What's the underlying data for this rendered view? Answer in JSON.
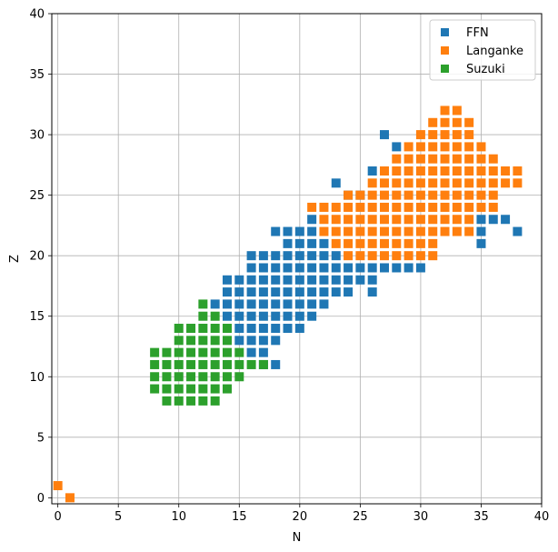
{
  "chart_data": {
    "type": "scatter",
    "xlabel": "N",
    "ylabel": "Z",
    "xlim": [
      -0.5,
      40
    ],
    "ylim": [
      -0.5,
      40
    ],
    "xticks": [
      0,
      5,
      10,
      15,
      20,
      25,
      30,
      35,
      40
    ],
    "yticks": [
      0,
      5,
      10,
      15,
      20,
      25,
      30,
      35,
      40
    ],
    "grid": true,
    "marker": "square",
    "legend_position": "top-right",
    "series": [
      {
        "name": "FFN",
        "color": "#1f77b4",
        "points": [
          [
            23,
            26
          ],
          [
            27,
            30
          ],
          [
            28,
            29
          ],
          [
            26,
            27
          ],
          [
            24,
            25
          ],
          [
            25,
            25
          ],
          [
            21,
            23
          ],
          [
            18,
            22
          ],
          [
            19,
            22
          ],
          [
            20,
            22
          ],
          [
            21,
            22
          ],
          [
            19,
            21
          ],
          [
            20,
            21
          ],
          [
            21,
            21
          ],
          [
            22,
            21
          ],
          [
            16,
            20
          ],
          [
            17,
            20
          ],
          [
            18,
            20
          ],
          [
            19,
            20
          ],
          [
            20,
            20
          ],
          [
            21,
            20
          ],
          [
            22,
            20
          ],
          [
            23,
            20
          ],
          [
            16,
            19
          ],
          [
            17,
            19
          ],
          [
            18,
            19
          ],
          [
            19,
            19
          ],
          [
            20,
            19
          ],
          [
            21,
            19
          ],
          [
            22,
            19
          ],
          [
            23,
            19
          ],
          [
            24,
            19
          ],
          [
            25,
            19
          ],
          [
            26,
            19
          ],
          [
            27,
            19
          ],
          [
            28,
            19
          ],
          [
            29,
            19
          ],
          [
            30,
            19
          ],
          [
            14,
            18
          ],
          [
            15,
            18
          ],
          [
            16,
            18
          ],
          [
            17,
            18
          ],
          [
            18,
            18
          ],
          [
            19,
            18
          ],
          [
            20,
            18
          ],
          [
            21,
            18
          ],
          [
            22,
            18
          ],
          [
            23,
            18
          ],
          [
            24,
            18
          ],
          [
            25,
            18
          ],
          [
            26,
            18
          ],
          [
            14,
            17
          ],
          [
            15,
            17
          ],
          [
            16,
            17
          ],
          [
            17,
            17
          ],
          [
            18,
            17
          ],
          [
            19,
            17
          ],
          [
            20,
            17
          ],
          [
            21,
            17
          ],
          [
            22,
            17
          ],
          [
            23,
            17
          ],
          [
            24,
            17
          ],
          [
            26,
            17
          ],
          [
            13,
            16
          ],
          [
            14,
            16
          ],
          [
            15,
            16
          ],
          [
            16,
            16
          ],
          [
            17,
            16
          ],
          [
            18,
            16
          ],
          [
            19,
            16
          ],
          [
            20,
            16
          ],
          [
            21,
            16
          ],
          [
            22,
            16
          ],
          [
            14,
            15
          ],
          [
            15,
            15
          ],
          [
            16,
            15
          ],
          [
            17,
            15
          ],
          [
            18,
            15
          ],
          [
            19,
            15
          ],
          [
            20,
            15
          ],
          [
            21,
            15
          ],
          [
            15,
            14
          ],
          [
            16,
            14
          ],
          [
            17,
            14
          ],
          [
            18,
            14
          ],
          [
            19,
            14
          ],
          [
            20,
            14
          ],
          [
            15,
            13
          ],
          [
            16,
            13
          ],
          [
            17,
            13
          ],
          [
            18,
            13
          ],
          [
            16,
            12
          ],
          [
            17,
            12
          ],
          [
            17,
            11
          ],
          [
            18,
            11
          ],
          [
            35,
            23
          ],
          [
            35,
            22
          ],
          [
            35,
            21
          ],
          [
            36,
            23
          ],
          [
            37,
            23
          ],
          [
            38,
            22
          ]
        ]
      },
      {
        "name": "Langanke",
        "color": "#ff7f0e",
        "points": [
          [
            0,
            1
          ],
          [
            1,
            0
          ],
          [
            32,
            32
          ],
          [
            33,
            32
          ],
          [
            31,
            31
          ],
          [
            32,
            31
          ],
          [
            33,
            31
          ],
          [
            34,
            31
          ],
          [
            30,
            30
          ],
          [
            31,
            30
          ],
          [
            32,
            30
          ],
          [
            33,
            30
          ],
          [
            34,
            30
          ],
          [
            29,
            29
          ],
          [
            30,
            29
          ],
          [
            31,
            29
          ],
          [
            32,
            29
          ],
          [
            33,
            29
          ],
          [
            34,
            29
          ],
          [
            35,
            29
          ],
          [
            28,
            28
          ],
          [
            29,
            28
          ],
          [
            30,
            28
          ],
          [
            31,
            28
          ],
          [
            32,
            28
          ],
          [
            33,
            28
          ],
          [
            34,
            28
          ],
          [
            35,
            28
          ],
          [
            36,
            28
          ],
          [
            27,
            27
          ],
          [
            28,
            27
          ],
          [
            29,
            27
          ],
          [
            30,
            27
          ],
          [
            31,
            27
          ],
          [
            32,
            27
          ],
          [
            33,
            27
          ],
          [
            34,
            27
          ],
          [
            35,
            27
          ],
          [
            36,
            27
          ],
          [
            37,
            27
          ],
          [
            38,
            27
          ],
          [
            26,
            26
          ],
          [
            27,
            26
          ],
          [
            28,
            26
          ],
          [
            29,
            26
          ],
          [
            30,
            26
          ],
          [
            31,
            26
          ],
          [
            32,
            26
          ],
          [
            33,
            26
          ],
          [
            34,
            26
          ],
          [
            35,
            26
          ],
          [
            36,
            26
          ],
          [
            37,
            26
          ],
          [
            38,
            26
          ],
          [
            25,
            25
          ],
          [
            26,
            25
          ],
          [
            27,
            25
          ],
          [
            28,
            25
          ],
          [
            29,
            25
          ],
          [
            30,
            25
          ],
          [
            31,
            25
          ],
          [
            32,
            25
          ],
          [
            33,
            25
          ],
          [
            34,
            25
          ],
          [
            35,
            25
          ],
          [
            36,
            25
          ],
          [
            24,
            25
          ],
          [
            24,
            24
          ],
          [
            25,
            24
          ],
          [
            26,
            24
          ],
          [
            27,
            24
          ],
          [
            28,
            24
          ],
          [
            29,
            24
          ],
          [
            30,
            24
          ],
          [
            31,
            24
          ],
          [
            32,
            24
          ],
          [
            33,
            24
          ],
          [
            34,
            24
          ],
          [
            35,
            24
          ],
          [
            36,
            24
          ],
          [
            21,
            24
          ],
          [
            22,
            24
          ],
          [
            23,
            24
          ],
          [
            22,
            23
          ],
          [
            23,
            23
          ],
          [
            24,
            23
          ],
          [
            25,
            23
          ],
          [
            26,
            23
          ],
          [
            27,
            23
          ],
          [
            28,
            23
          ],
          [
            29,
            23
          ],
          [
            30,
            23
          ],
          [
            31,
            23
          ],
          [
            32,
            23
          ],
          [
            33,
            23
          ],
          [
            34,
            23
          ],
          [
            22,
            22
          ],
          [
            23,
            22
          ],
          [
            24,
            22
          ],
          [
            25,
            22
          ],
          [
            26,
            22
          ],
          [
            27,
            22
          ],
          [
            28,
            22
          ],
          [
            29,
            22
          ],
          [
            30,
            22
          ],
          [
            31,
            22
          ],
          [
            32,
            22
          ],
          [
            33,
            22
          ],
          [
            34,
            22
          ],
          [
            23,
            21
          ],
          [
            24,
            21
          ],
          [
            25,
            21
          ],
          [
            26,
            21
          ],
          [
            27,
            21
          ],
          [
            28,
            21
          ],
          [
            29,
            21
          ],
          [
            30,
            21
          ],
          [
            31,
            21
          ],
          [
            24,
            20
          ],
          [
            25,
            20
          ],
          [
            26,
            20
          ],
          [
            27,
            20
          ],
          [
            28,
            20
          ],
          [
            29,
            20
          ],
          [
            30,
            20
          ],
          [
            31,
            20
          ]
        ]
      },
      {
        "name": "Suzuki",
        "color": "#2ca02c",
        "points": [
          [
            12,
            16
          ],
          [
            12,
            15
          ],
          [
            13,
            15
          ],
          [
            10,
            14
          ],
          [
            11,
            14
          ],
          [
            12,
            14
          ],
          [
            13,
            14
          ],
          [
            14,
            14
          ],
          [
            10,
            13
          ],
          [
            11,
            13
          ],
          [
            12,
            13
          ],
          [
            13,
            13
          ],
          [
            14,
            13
          ],
          [
            10,
            12
          ],
          [
            11,
            12
          ],
          [
            12,
            12
          ],
          [
            13,
            12
          ],
          [
            14,
            12
          ],
          [
            15,
            12
          ],
          [
            8,
            12
          ],
          [
            9,
            12
          ],
          [
            8,
            11
          ],
          [
            9,
            11
          ],
          [
            10,
            11
          ],
          [
            11,
            11
          ],
          [
            12,
            11
          ],
          [
            13,
            11
          ],
          [
            14,
            11
          ],
          [
            15,
            11
          ],
          [
            16,
            11
          ],
          [
            17,
            11
          ],
          [
            8,
            10
          ],
          [
            9,
            10
          ],
          [
            10,
            10
          ],
          [
            11,
            10
          ],
          [
            12,
            10
          ],
          [
            13,
            10
          ],
          [
            14,
            10
          ],
          [
            15,
            10
          ],
          [
            8,
            9
          ],
          [
            9,
            9
          ],
          [
            10,
            9
          ],
          [
            11,
            9
          ],
          [
            12,
            9
          ],
          [
            13,
            9
          ],
          [
            14,
            9
          ],
          [
            9,
            8
          ],
          [
            10,
            8
          ],
          [
            11,
            8
          ],
          [
            12,
            8
          ],
          [
            13,
            8
          ]
        ]
      }
    ]
  }
}
